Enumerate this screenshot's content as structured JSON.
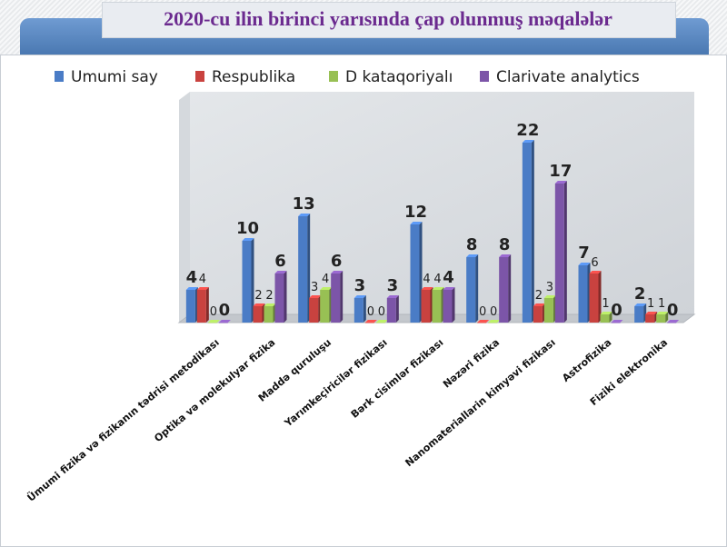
{
  "title": "2020-cu ilin birinci yarısında çap olunmuş məqalələr",
  "chart_data": {
    "type": "bar",
    "title": "2020-cu ilin birinci yarısında çap olunmuş məqalələr",
    "categories": [
      "Ümumi fizika və fizikanın tədrisi metodikası",
      "Optika və molekulyar fizika",
      "Maddə quruluşu",
      "Yarımkeçiricilər fizikası",
      "Bərk cisimlər fizikası",
      "Nəzəri fizika",
      "Nanomateriallarin kimyəvi fizikası",
      "Astrofizika",
      "Fiziki elektronika"
    ],
    "series": [
      {
        "name": "Umumi say",
        "color": "#4a7cc6",
        "values": [
          4,
          10,
          13,
          3,
          12,
          8,
          22,
          7,
          2
        ]
      },
      {
        "name": "Respublika",
        "color": "#c9423f",
        "values": [
          4,
          2,
          3,
          0,
          4,
          0,
          2,
          6,
          1
        ]
      },
      {
        "name": "D kataqoriyalı",
        "color": "#98c054",
        "values": [
          0,
          2,
          4,
          0,
          4,
          0,
          3,
          1,
          1
        ]
      },
      {
        "name": "Clarivate analytics",
        "color": "#7c55a8",
        "values": [
          0,
          6,
          6,
          3,
          4,
          8,
          17,
          0,
          0
        ]
      }
    ],
    "ylim": [
      0,
      25
    ],
    "grid": false,
    "legend": "top",
    "data_labels": true
  }
}
